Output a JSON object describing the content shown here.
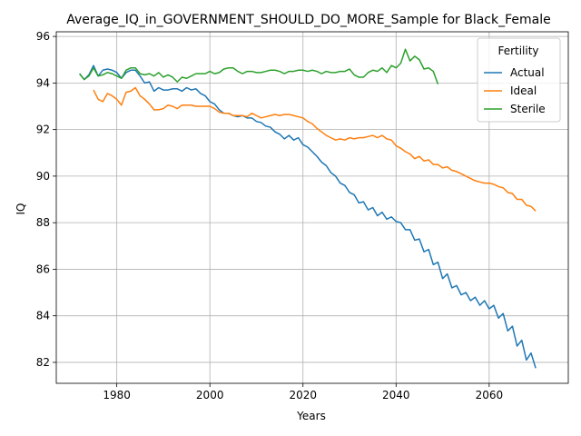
{
  "chart_data": {
    "type": "line",
    "title": "Average_IQ_in_GOVERNMENT_SHOULD_DO_MORE_Sample for Black_Female",
    "xlabel": "Years",
    "ylabel": "IQ",
    "xlim": [
      1967,
      2077
    ],
    "ylim": [
      81.1,
      96.2
    ],
    "xticks": [
      1980,
      2000,
      2020,
      2040,
      2060
    ],
    "yticks": [
      82,
      84,
      86,
      88,
      90,
      92,
      94,
      96
    ],
    "grid": true,
    "legend": {
      "title": "Fertility",
      "placement": "top-right"
    },
    "series": [
      {
        "name": "Actual",
        "color": "#1f77b4",
        "x": [
          1972,
          1973,
          1974,
          1975,
          1976,
          1977,
          1978,
          1979,
          1980,
          1981,
          1982,
          1983,
          1984,
          1985,
          1986,
          1987,
          1988,
          1989,
          1990,
          1991,
          1992,
          1993,
          1994,
          1995,
          1996,
          1997,
          1998,
          1999,
          2000,
          2001,
          2002,
          2003,
          2004,
          2005,
          2006,
          2007,
          2008,
          2009,
          2010,
          2011,
          2012,
          2013,
          2014,
          2015,
          2016,
          2017,
          2018,
          2019,
          2020,
          2021,
          2022,
          2023,
          2024,
          2025,
          2026,
          2027,
          2028,
          2029,
          2030,
          2031,
          2032,
          2033,
          2034,
          2035,
          2036,
          2037,
          2038,
          2039,
          2040,
          2041,
          2042,
          2043,
          2044,
          2045,
          2046,
          2047,
          2048,
          2049,
          2050,
          2051,
          2052,
          2053,
          2054,
          2055,
          2056,
          2057,
          2058,
          2059,
          2060,
          2061,
          2062,
          2063,
          2064,
          2065,
          2066,
          2067,
          2068,
          2069,
          2070
        ],
        "values": [
          94.4,
          94.15,
          94.35,
          94.75,
          94.3,
          94.55,
          94.6,
          94.55,
          94.45,
          94.2,
          94.45,
          94.55,
          94.55,
          94.3,
          94.0,
          94.05,
          93.65,
          93.8,
          93.7,
          93.7,
          93.75,
          93.75,
          93.65,
          93.8,
          93.7,
          93.75,
          93.55,
          93.45,
          93.2,
          93.1,
          92.85,
          92.7,
          92.7,
          92.6,
          92.55,
          92.6,
          92.5,
          92.5,
          92.35,
          92.3,
          92.15,
          92.1,
          91.9,
          91.8,
          91.6,
          91.75,
          91.55,
          91.65,
          91.35,
          91.25,
          91.05,
          90.85,
          90.6,
          90.45,
          90.15,
          90.0,
          89.7,
          89.6,
          89.3,
          89.2,
          88.85,
          88.9,
          88.55,
          88.65,
          88.3,
          88.45,
          88.15,
          88.25,
          88.05,
          88.0,
          87.7,
          87.7,
          87.25,
          87.3,
          86.75,
          86.85,
          86.2,
          86.3,
          85.6,
          85.8,
          85.2,
          85.3,
          84.9,
          85.0,
          84.65,
          84.8,
          84.45,
          84.65,
          84.3,
          84.45,
          83.9,
          84.1,
          83.35,
          83.55,
          82.7,
          82.95,
          82.1,
          82.4,
          81.75
        ]
      },
      {
        "name": "Ideal",
        "color": "#ff7f0e",
        "x": [
          1975,
          1976,
          1977,
          1978,
          1979,
          1980,
          1981,
          1982,
          1983,
          1984,
          1985,
          1986,
          1987,
          1988,
          1989,
          1990,
          1991,
          1992,
          1993,
          1994,
          1995,
          1996,
          1997,
          1998,
          1999,
          2000,
          2001,
          2002,
          2003,
          2004,
          2005,
          2006,
          2007,
          2008,
          2009,
          2010,
          2011,
          2012,
          2013,
          2014,
          2015,
          2016,
          2017,
          2018,
          2019,
          2020,
          2021,
          2022,
          2023,
          2024,
          2025,
          2026,
          2027,
          2028,
          2029,
          2030,
          2031,
          2032,
          2033,
          2034,
          2035,
          2036,
          2037,
          2038,
          2039,
          2040,
          2041,
          2042,
          2043,
          2044,
          2045,
          2046,
          2047,
          2048,
          2049,
          2050,
          2051,
          2052,
          2053,
          2054,
          2055,
          2056,
          2057,
          2058,
          2059,
          2060,
          2061,
          2062,
          2063,
          2064,
          2065,
          2066,
          2067,
          2068,
          2069,
          2070
        ],
        "values": [
          93.7,
          93.3,
          93.2,
          93.55,
          93.45,
          93.3,
          93.05,
          93.6,
          93.65,
          93.8,
          93.45,
          93.3,
          93.1,
          92.85,
          92.85,
          92.9,
          93.05,
          93.0,
          92.9,
          93.05,
          93.05,
          93.05,
          93.0,
          93.0,
          93.0,
          93.0,
          92.9,
          92.75,
          92.7,
          92.7,
          92.6,
          92.6,
          92.6,
          92.55,
          92.7,
          92.6,
          92.5,
          92.55,
          92.6,
          92.65,
          92.6,
          92.65,
          92.65,
          92.6,
          92.55,
          92.5,
          92.35,
          92.25,
          92.05,
          91.9,
          91.75,
          91.65,
          91.55,
          91.6,
          91.55,
          91.65,
          91.6,
          91.65,
          91.65,
          91.7,
          91.75,
          91.65,
          91.75,
          91.6,
          91.55,
          91.3,
          91.2,
          91.05,
          90.95,
          90.75,
          90.85,
          90.65,
          90.7,
          90.5,
          90.5,
          90.35,
          90.4,
          90.25,
          90.2,
          90.1,
          90.0,
          89.9,
          89.8,
          89.75,
          89.7,
          89.7,
          89.65,
          89.55,
          89.5,
          89.3,
          89.25,
          89.0,
          89.0,
          88.75,
          88.7,
          88.5
        ]
      },
      {
        "name": "Sterile",
        "color": "#2ca02c",
        "x": [
          1972,
          1973,
          1974,
          1975,
          1976,
          1977,
          1978,
          1979,
          1980,
          1981,
          1982,
          1983,
          1984,
          1985,
          1986,
          1987,
          1988,
          1989,
          1990,
          1991,
          1992,
          1993,
          1994,
          1995,
          1996,
          1997,
          1998,
          1999,
          2000,
          2001,
          2002,
          2003,
          2004,
          2005,
          2006,
          2007,
          2008,
          2009,
          2010,
          2011,
          2012,
          2013,
          2014,
          2015,
          2016,
          2017,
          2018,
          2019,
          2020,
          2021,
          2022,
          2023,
          2024,
          2025,
          2026,
          2027,
          2028,
          2029,
          2030,
          2031,
          2032,
          2033,
          2034,
          2035,
          2036,
          2037,
          2038,
          2039,
          2040,
          2041,
          2042,
          2043,
          2044,
          2045,
          2046,
          2047,
          2048,
          2049
        ],
        "values": [
          94.4,
          94.15,
          94.3,
          94.65,
          94.3,
          94.35,
          94.45,
          94.4,
          94.3,
          94.2,
          94.55,
          94.65,
          94.65,
          94.4,
          94.35,
          94.4,
          94.3,
          94.45,
          94.25,
          94.35,
          94.25,
          94.05,
          94.25,
          94.2,
          94.3,
          94.4,
          94.4,
          94.4,
          94.5,
          94.4,
          94.45,
          94.6,
          94.65,
          94.65,
          94.5,
          94.4,
          94.5,
          94.5,
          94.45,
          94.45,
          94.5,
          94.55,
          94.55,
          94.5,
          94.4,
          94.5,
          94.5,
          94.55,
          94.55,
          94.5,
          94.55,
          94.5,
          94.4,
          94.5,
          94.45,
          94.45,
          94.5,
          94.5,
          94.6,
          94.35,
          94.25,
          94.25,
          94.45,
          94.55,
          94.5,
          94.65,
          94.45,
          94.75,
          94.65,
          94.85,
          95.45,
          94.95,
          95.15,
          95.0,
          94.6,
          94.65,
          94.5,
          93.95
        ]
      }
    ]
  }
}
